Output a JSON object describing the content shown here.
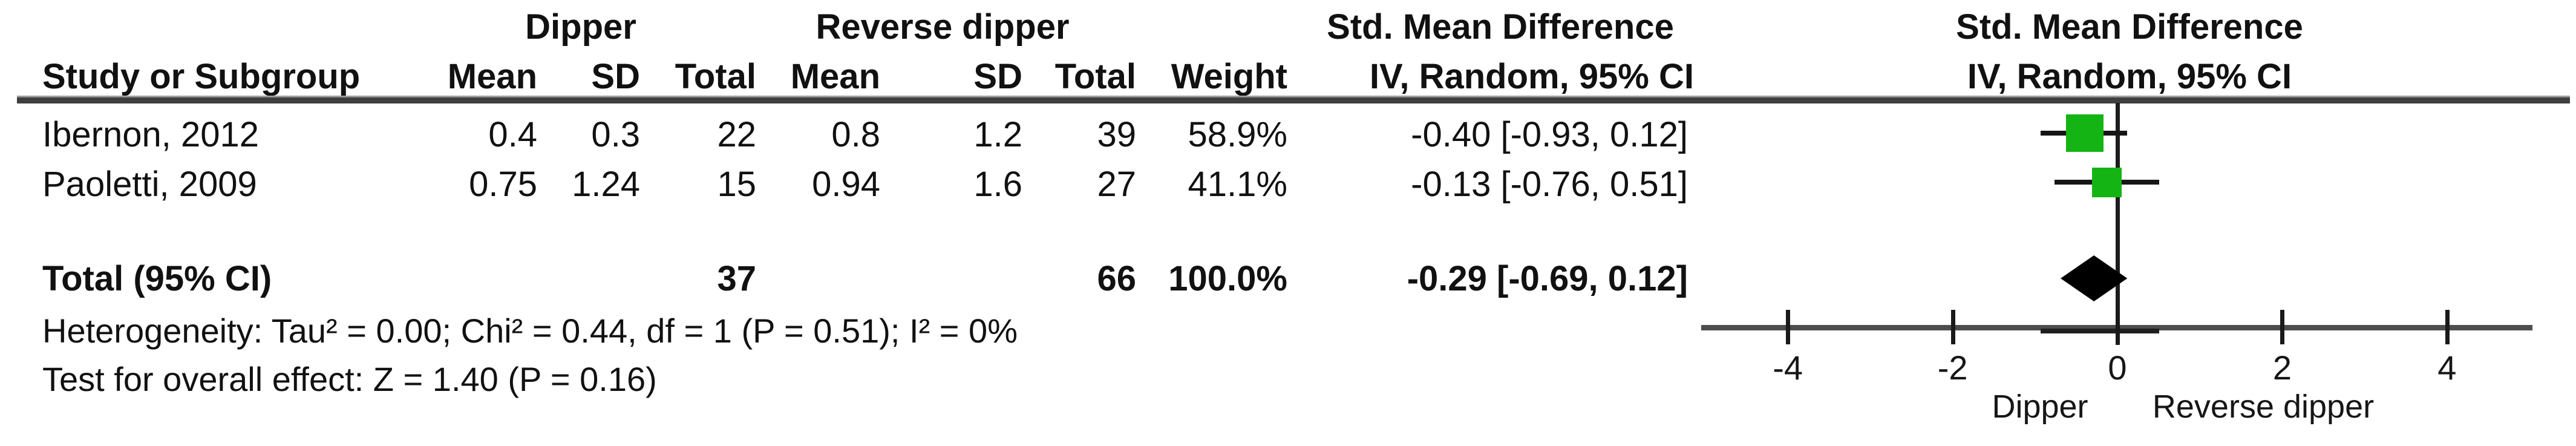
{
  "figure": {
    "background": "#ffffff",
    "text_color": "#111111"
  },
  "table": {
    "group_headers": [
      "Dipper",
      "Reverse dipper",
      "Std. Mean Difference",
      "Std. Mean Difference"
    ],
    "col_headers": [
      "Study or Subgroup",
      "Mean",
      "SD",
      "Total",
      "Mean",
      "SD",
      "Total",
      "Weight",
      "IV, Random, 95% CI",
      "IV, Random, 95% CI"
    ],
    "rows": [
      {
        "study": "Ibernon, 2012",
        "mean1": "0.4",
        "sd1": "0.3",
        "total1": "22",
        "mean2": "0.8",
        "sd2": "1.2",
        "total2": "39",
        "weight": "58.9%",
        "ci_text": "-0.40 [-0.93, 0.12]"
      },
      {
        "study": "Paoletti, 2009",
        "mean1": "0.75",
        "sd1": "1.24",
        "total1": "15",
        "mean2": "0.94",
        "sd2": "1.6",
        "total2": "27",
        "weight": "41.1%",
        "ci_text": "-0.13 [-0.76, 0.51]"
      }
    ],
    "total_row": {
      "label": "Total (95% CI)",
      "total1": "37",
      "total2": "66",
      "weight": "100.0%",
      "ci_text": "-0.29 [-0.69, 0.12]"
    },
    "footnotes": {
      "heterogeneity": "Heterogeneity: Tau² = 0.00; Chi² = 0.44, df = 1 (P = 0.51); I² = 0%",
      "overall_effect": "Test for overall effect: Z = 1.40 (P = 0.16)"
    }
  },
  "chart_data": {
    "type": "forest",
    "title": "Std. Mean Difference",
    "model": "IV, Random, 95% CI",
    "comparison_groups": [
      "Dipper",
      "Reverse dipper"
    ],
    "studies": [
      {
        "name": "Ibernon, 2012",
        "estimate": -0.4,
        "ci_low": -0.93,
        "ci_high": 0.12,
        "weight_pct": 58.9
      },
      {
        "name": "Paoletti, 2009",
        "estimate": -0.13,
        "ci_low": -0.76,
        "ci_high": 0.51,
        "weight_pct": 41.1
      }
    ],
    "total": {
      "label": "Total (95% CI)",
      "estimate": -0.29,
      "ci_low": -0.69,
      "ci_high": 0.12,
      "weight_pct": 100.0
    },
    "heterogeneity": {
      "tau2": 0.0,
      "chi2": 0.44,
      "df": 1,
      "p": 0.51,
      "i2_pct": 0
    },
    "overall_effect": {
      "z": 1.4,
      "p": 0.16
    },
    "axis": {
      "min": -5,
      "max": 5,
      "ticks": [
        -4,
        -2,
        0,
        2,
        4
      ],
      "zero_line": 0,
      "left_label": "Dipper",
      "right_label": "Reverse dipper"
    },
    "colors": {
      "marker": "#15b415",
      "diamond": "#000000",
      "axis": "#4d4d4d",
      "ci_line": "#161616"
    }
  }
}
